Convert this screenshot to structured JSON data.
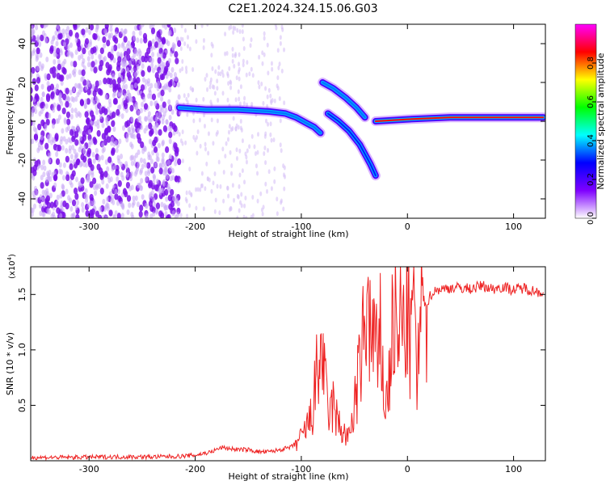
{
  "figure_title": "C2E1.2024.324.15.06.G03",
  "chart_data": [
    {
      "type": "heatmap",
      "id": "spectrogram",
      "xlabel": "Height of straight line (km)",
      "ylabel": "Frequency (Hz)",
      "xlim": [
        -355,
        130
      ],
      "ylim": [
        -50,
        50
      ],
      "xticks": [
        -300,
        -200,
        -100,
        0,
        100
      ],
      "yticks": [
        -40,
        -20,
        0,
        20,
        40
      ],
      "grid": false,
      "colorbar": {
        "label": "Normalized spectral amplitude",
        "range": [
          0,
          1
        ],
        "ticks": [
          "0.0",
          "0.2",
          "0.4",
          "0.6",
          "0.8"
        ],
        "colors": [
          "#ffffff",
          "#7f00ff",
          "#0000ff",
          "#00ffff",
          "#00ff00",
          "#ffff00",
          "#ff0000",
          "#ff00ff"
        ]
      },
      "features": [
        {
          "label": "broadband noise region",
          "x_range": [
            -355,
            -215
          ],
          "freq_range": [
            -50,
            50
          ],
          "amplitude": 0.15
        },
        {
          "label": "carrier trace",
          "points": [
            [
              -215,
              7
            ],
            [
              -190,
              6
            ],
            [
              -160,
              6
            ],
            [
              -130,
              5
            ],
            [
              -115,
              4
            ],
            [
              -105,
              2
            ],
            [
              -95,
              -1
            ],
            [
              -88,
              -3
            ],
            [
              -82,
              -6
            ]
          ],
          "amplitude": 0.35
        },
        {
          "label": "carrier trace",
          "points": [
            [
              -80,
              20
            ],
            [
              -70,
              17
            ],
            [
              -58,
              12
            ],
            [
              -48,
              7
            ],
            [
              -40,
              2
            ]
          ],
          "amplitude": 0.35
        },
        {
          "label": "carrier trace",
          "points": [
            [
              -75,
              4
            ],
            [
              -65,
              0
            ],
            [
              -55,
              -5
            ],
            [
              -45,
              -12
            ],
            [
              -35,
              -22
            ],
            [
              -30,
              -28
            ]
          ],
          "amplitude": 0.3
        },
        {
          "label": "carrier trace",
          "points": [
            [
              -30,
              0
            ],
            [
              0,
              1
            ],
            [
              40,
              2
            ],
            [
              80,
              2
            ],
            [
              128,
              2
            ]
          ],
          "amplitude": 0.85
        }
      ]
    },
    {
      "type": "line",
      "id": "snr",
      "xlabel": "Height of straight line (km)",
      "ylabel": "SNR (10 * v/v)",
      "y_multiplier": "(x10",
      "y_multiplier_exp": "4",
      "xlim": [
        -355,
        130
      ],
      "ylim": [
        0,
        1.75
      ],
      "xticks": [
        -300,
        -200,
        -100,
        0,
        100
      ],
      "yticks": [
        "0.5",
        "1.0",
        "1.5"
      ],
      "ytick_values": [
        0.5,
        1.0,
        1.5
      ],
      "grid": false,
      "color": "#ee2222",
      "series": [
        {
          "x": [
            -355,
            -320,
            -280,
            -240,
            -215,
            -200,
            -185,
            -175,
            -160,
            -150,
            -140,
            -130,
            -120,
            -110,
            -100,
            -90,
            -85,
            -80,
            -77,
            -74,
            -70,
            -66,
            -60,
            -55,
            -50,
            -45,
            -40,
            -37,
            -34,
            -31,
            -28,
            -25,
            -22,
            -18,
            -15,
            -12,
            -9,
            -6,
            -3,
            0,
            3,
            6,
            9,
            12,
            15,
            18,
            22,
            26,
            30,
            35,
            40,
            50,
            60,
            70,
            80,
            90,
            100,
            110,
            120,
            128
          ],
          "y": [
            0.03,
            0.03,
            0.035,
            0.035,
            0.04,
            0.05,
            0.08,
            0.12,
            0.1,
            0.1,
            0.08,
            0.08,
            0.1,
            0.12,
            0.2,
            0.4,
            0.8,
            1.0,
            0.6,
            0.4,
            0.5,
            0.35,
            0.25,
            0.2,
            0.5,
            0.8,
            1.2,
            1.65,
            0.9,
            1.3,
            0.7,
            1.2,
            0.5,
            0.6,
            1.1,
            1.3,
            0.95,
            1.35,
            1.1,
            1.4,
            1.0,
            1.72,
            0.6,
            1.2,
            1.45,
            1.4,
            1.5,
            1.53,
            1.55,
            1.55,
            1.56,
            1.56,
            1.55,
            1.58,
            1.55,
            1.57,
            1.54,
            1.56,
            1.53,
            1.52
          ]
        }
      ]
    }
  ]
}
